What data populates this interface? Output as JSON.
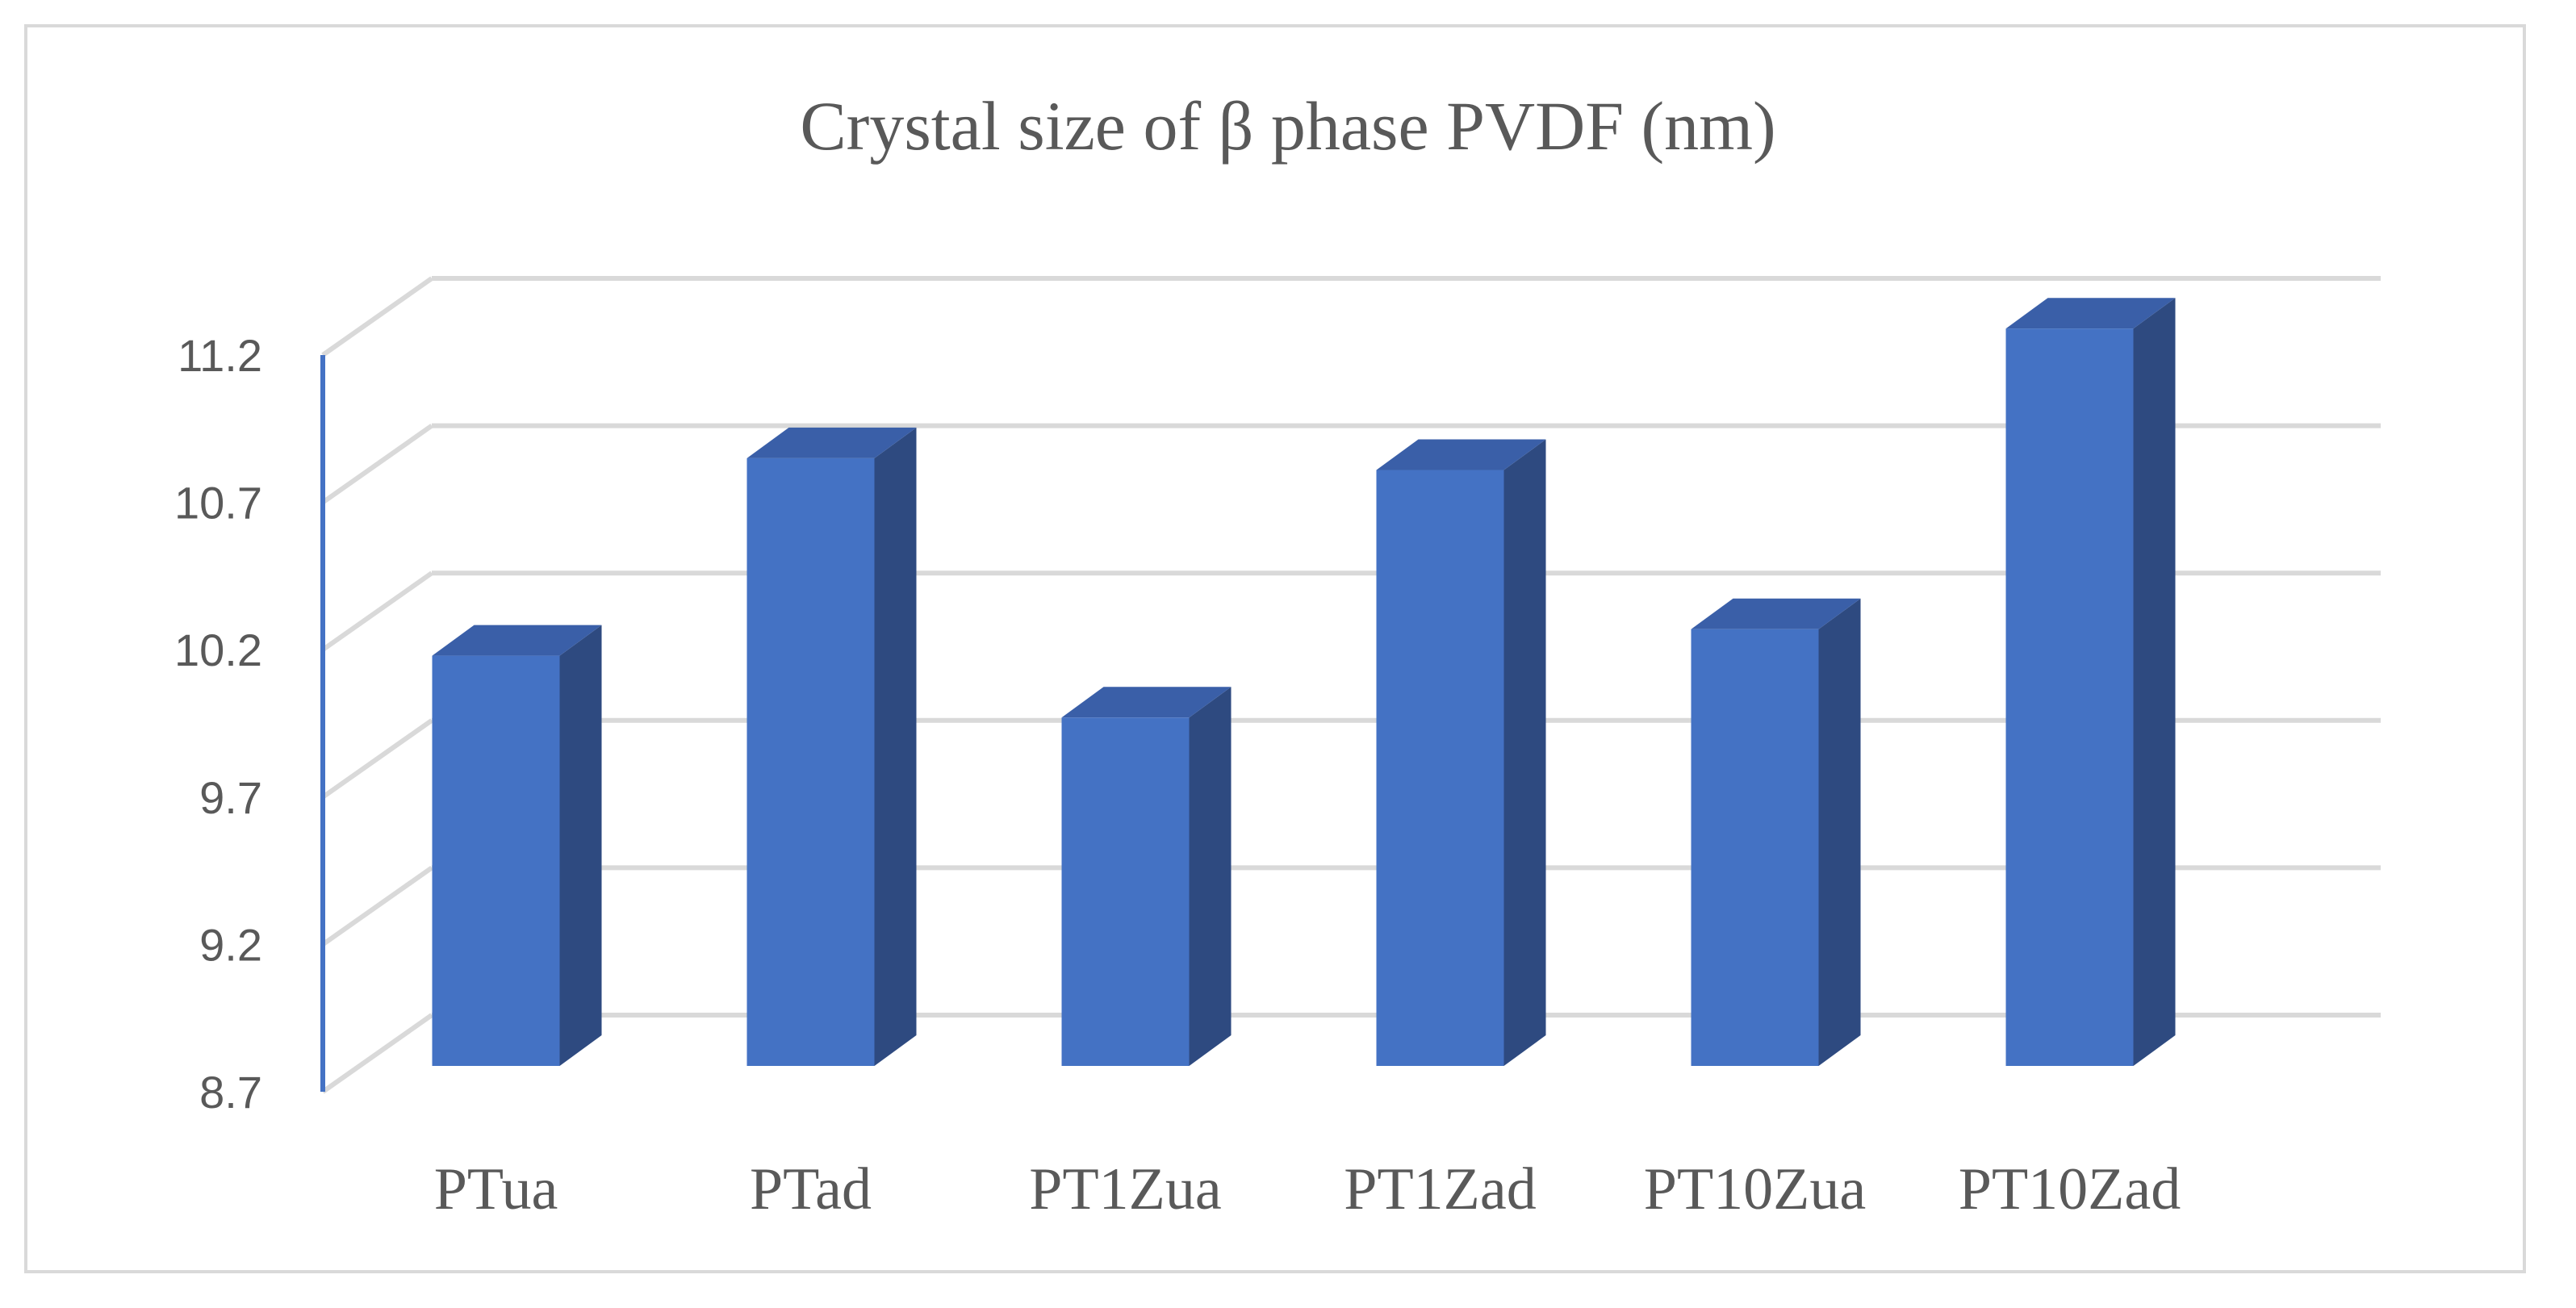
{
  "chart_data": {
    "type": "bar",
    "title": "Crystal size of β phase PVDF (nm)",
    "xlabel": "",
    "ylabel": "",
    "categories": [
      "PTua",
      "PTad",
      "PT1Zua",
      "PT1Zad",
      "PT10Zua",
      "PT10Zad"
    ],
    "values": [
      10.01,
      10.68,
      9.8,
      10.64,
      10.1,
      11.12
    ],
    "ylim": [
      8.7,
      11.2
    ],
    "yticks": [
      "8.7",
      "9.2",
      "9.7",
      "10.2",
      "10.7",
      "11.2"
    ],
    "grid": true,
    "legend": "none",
    "three_d": true,
    "colors": {
      "bar_front": "#4472c4",
      "bar_side": "#2e4a80",
      "bar_top": "#3a5fa8",
      "gridline": "#d9d9d9",
      "axis": "#4472c4",
      "text": "#595959"
    }
  }
}
